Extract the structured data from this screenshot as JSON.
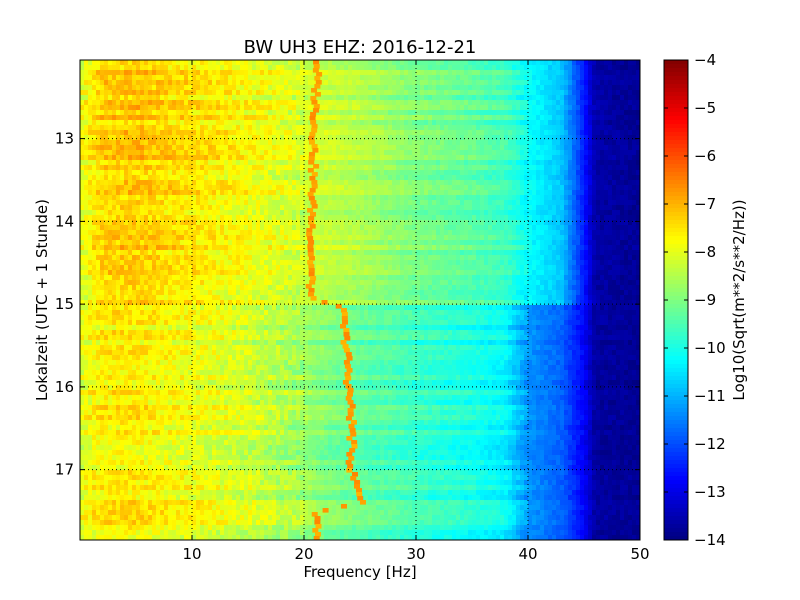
{
  "chart_data": {
    "type": "heatmap",
    "title": "BW UH3 EHZ: 2016-12-21",
    "xlabel": "Frequency [Hz]",
    "ylabel": "Lokalzeit (UTC + 1 Stunde)",
    "xlim": [
      0,
      50
    ],
    "ylim": [
      12.05,
      17.85
    ],
    "y_inverted": true,
    "x_ticks": [
      10,
      20,
      30,
      40,
      50
    ],
    "y_ticks": [
      13,
      14,
      15,
      16,
      17
    ],
    "grid": true,
    "colormap": "jet",
    "colorbar": {
      "label": "Log10(Sqrt(m**2/s**2/Hz))",
      "range": [
        -14,
        -4
      ],
      "ticks": [
        -4,
        -5,
        -6,
        -7,
        -8,
        -9,
        -10,
        -11,
        -12,
        -13,
        -14
      ]
    },
    "spectrum_before_15h": [
      [
        0,
        -8.0
      ],
      [
        2,
        -7.3
      ],
      [
        5,
        -7.2
      ],
      [
        8,
        -7.4
      ],
      [
        12,
        -7.6
      ],
      [
        15,
        -7.8
      ],
      [
        18,
        -8.0
      ],
      [
        20,
        -8.2
      ],
      [
        22,
        -8.3
      ],
      [
        25,
        -8.5
      ],
      [
        28,
        -8.8
      ],
      [
        30,
        -9.0
      ],
      [
        35,
        -9.3
      ],
      [
        38,
        -9.6
      ],
      [
        40,
        -10.2
      ],
      [
        43,
        -10.8
      ],
      [
        45,
        -12.5
      ],
      [
        46,
        -13.6
      ],
      [
        50,
        -13.8
      ]
    ],
    "spectrum_after_15h": [
      [
        0,
        -8.0
      ],
      [
        2,
        -7.6
      ],
      [
        5,
        -7.6
      ],
      [
        8,
        -7.8
      ],
      [
        12,
        -8.0
      ],
      [
        15,
        -8.2
      ],
      [
        18,
        -8.5
      ],
      [
        20,
        -8.7
      ],
      [
        22,
        -9.0
      ],
      [
        25,
        -9.3
      ],
      [
        28,
        -9.5
      ],
      [
        30,
        -9.7
      ],
      [
        35,
        -10.0
      ],
      [
        38,
        -10.3
      ],
      [
        40,
        -11.3
      ],
      [
        43,
        -11.8
      ],
      [
        45,
        -12.8
      ],
      [
        46,
        -13.7
      ],
      [
        50,
        -13.8
      ]
    ],
    "tonal_line": {
      "level": -6.8,
      "points": [
        [
          12.05,
          21.2
        ],
        [
          13.0,
          20.9
        ],
        [
          14.0,
          20.7
        ],
        [
          14.95,
          20.6
        ],
        [
          15.0,
          23.3
        ],
        [
          15.5,
          23.8
        ],
        [
          16.0,
          24.0
        ],
        [
          16.5,
          24.3
        ],
        [
          17.0,
          24.2
        ],
        [
          17.4,
          25.3
        ],
        [
          17.5,
          21.2
        ],
        [
          17.85,
          21.2
        ]
      ]
    }
  }
}
